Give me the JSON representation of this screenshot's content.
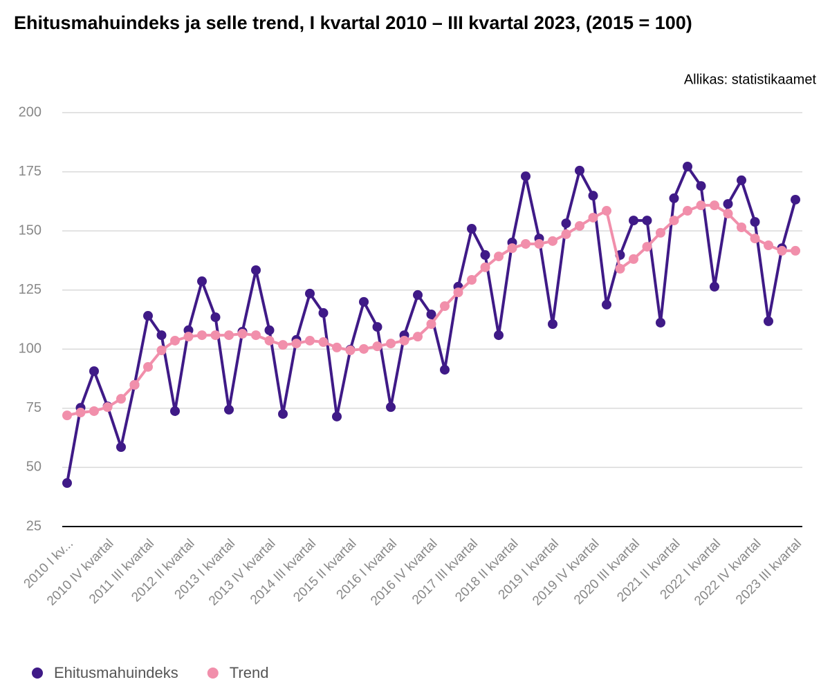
{
  "chart_data": {
    "type": "line",
    "title": "Ehitusmahuindeks ja selle trend, I kvartal 2010 – III kvartal 2023, (2015 = 100)",
    "source": "Allikas: statistikaamet",
    "categories": [
      "2010 I kv...",
      null,
      null,
      "2010 IV kvartal",
      null,
      null,
      "2011 III kvartal",
      null,
      null,
      "2012 II kvartal",
      null,
      null,
      "2013 I kvartal",
      null,
      null,
      "2013 IV kvartal",
      null,
      null,
      "2014 III kvartal",
      null,
      null,
      "2015 II kvartal",
      null,
      null,
      "2016 I kvartal",
      null,
      null,
      "2016 IV kvartal",
      null,
      null,
      "2017 III kvartal",
      null,
      null,
      "2018 II kvartal",
      null,
      null,
      "2019 I kvartal",
      null,
      null,
      "2019 IV kvartal",
      null,
      null,
      "2020 III kvartal",
      null,
      null,
      "2021 II kvartal",
      null,
      null,
      "2022 I kvartal",
      null,
      null,
      "2022 IV kvartal",
      null,
      null,
      "2023 III kvartal"
    ],
    "series": [
      {
        "name": "Ehitusmahuindeks",
        "color": "#3f1a87",
        "values": [
          43.4,
          75.2,
          90.7,
          75.8,
          58.6,
          84.9,
          114.1,
          105.9,
          73.8,
          108,
          128.7,
          113.5,
          74.4,
          107.4,
          133.4,
          108,
          72.6,
          103.9,
          123.5,
          115.3,
          71.5,
          99.8,
          120,
          109.4,
          75.5,
          105.9,
          122.9,
          114.7,
          91.3,
          126.4,
          150.9,
          139.8,
          105.9,
          145.1,
          173.1,
          146.8,
          110.6,
          153.2,
          175.5,
          164.9,
          118.8,
          139.8,
          154.4,
          154.4,
          111.2,
          163.8,
          177.2,
          169,
          126.4,
          161.4,
          171.4,
          153.8,
          111.8,
          142.7,
          163.2
        ]
      },
      {
        "name": "Trend",
        "color": "#f18fab",
        "values": [
          72,
          73.2,
          73.8,
          75.5,
          79,
          84.9,
          92.5,
          99.5,
          103.6,
          105.3,
          105.9,
          105.9,
          105.9,
          106.5,
          105.9,
          103.6,
          101.8,
          102.4,
          103.6,
          103,
          100.7,
          99.5,
          100.1,
          101.2,
          102.4,
          103.6,
          105.3,
          110.6,
          118.2,
          124,
          129.3,
          134.6,
          139.2,
          142.7,
          144.5,
          144.5,
          145.7,
          148.6,
          152.1,
          155.6,
          158.5,
          134,
          138.1,
          143.3,
          149.2,
          154.4,
          158.5,
          160.8,
          160.8,
          157.3,
          151.5,
          146.8,
          143.9,
          141.6,
          141.6
        ]
      }
    ],
    "ylim": [
      25,
      200
    ],
    "yticks": [
      25,
      50,
      75,
      100,
      125,
      150,
      175,
      200
    ],
    "grid": true,
    "legend": "bottom"
  }
}
